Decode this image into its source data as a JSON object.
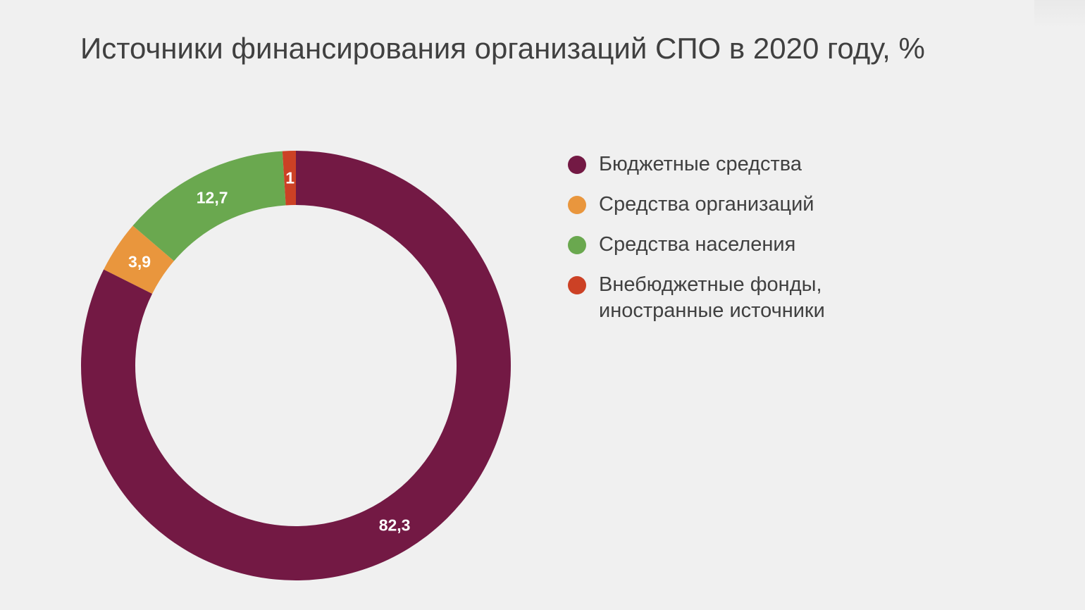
{
  "title": "Источники финансирования организаций СПО в 2020 году, %",
  "chart_data": {
    "type": "pie",
    "variant": "donut",
    "title": "Источники финансирования организаций СПО в 2020 году, %",
    "unit": "%",
    "start_angle_deg": 0,
    "direction": "clockwise",
    "legend_position": "right",
    "slices": [
      {
        "name": "Бюджетные средства",
        "value": 82.3,
        "label": "82,3",
        "color": "#731944"
      },
      {
        "name": "Средства организаций",
        "value": 3.9,
        "label": "3,9",
        "color": "#e9963d"
      },
      {
        "name": "Средства населения",
        "value": 12.7,
        "label": "12,7",
        "color": "#6aa84f"
      },
      {
        "name": "Внебюджетные фонды, иностранные источники",
        "legend_lines": [
          "Внебюджетные фонды,",
          "иностранные источники"
        ],
        "value": 1,
        "label": "1",
        "color": "#cc4125"
      }
    ]
  }
}
